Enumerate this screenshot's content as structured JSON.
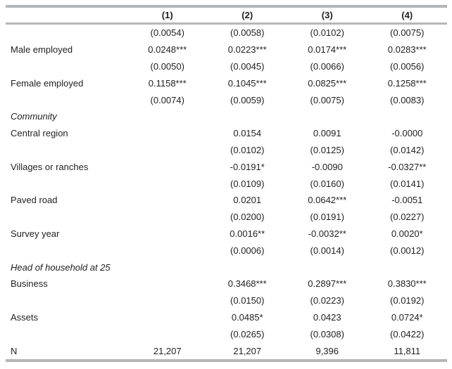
{
  "table": {
    "colors": {
      "rule": "#b4b6b8",
      "text": "#1f1f1f"
    },
    "header": {
      "label": "",
      "columns": [
        "(1)",
        "(2)",
        "(3)",
        "(4)"
      ]
    },
    "rows": [
      {
        "label": "",
        "italic": false,
        "values": [
          "(0.0054)",
          "(0.0058)",
          "(0.0102)",
          "(0.0075)"
        ]
      },
      {
        "label": "Male employed",
        "italic": false,
        "values": [
          "0.0248***",
          "0.0223***",
          "0.0174***",
          "0.0283***"
        ]
      },
      {
        "label": "",
        "italic": false,
        "values": [
          "(0.0050)",
          "(0.0045)",
          "(0.0066)",
          "(0.0056)"
        ]
      },
      {
        "label": "Female employed",
        "italic": false,
        "values": [
          "0.1158***",
          "0.1045***",
          "0.0825***",
          "0.1258***"
        ]
      },
      {
        "label": "",
        "italic": false,
        "values": [
          "(0.0074)",
          "(0.0059)",
          "(0.0075)",
          "(0.0083)"
        ]
      },
      {
        "label": "Community",
        "italic": true,
        "values": [
          "",
          "",
          "",
          ""
        ]
      },
      {
        "label": "Central region",
        "italic": false,
        "values": [
          "",
          "0.0154",
          "0.0091",
          "-0.0000"
        ]
      },
      {
        "label": "",
        "italic": false,
        "values": [
          "",
          "(0.0102)",
          "(0.0125)",
          "(0.0142)"
        ]
      },
      {
        "label": "Villages or ranches",
        "italic": false,
        "values": [
          "",
          "-0.0191*",
          "-0.0090",
          "-0.0327**"
        ]
      },
      {
        "label": "",
        "italic": false,
        "values": [
          "",
          "(0.0109)",
          "(0.0160)",
          "(0.0141)"
        ]
      },
      {
        "label": "Paved road",
        "italic": false,
        "values": [
          "",
          "0.0201",
          "0.0642***",
          "-0.0051"
        ]
      },
      {
        "label": "",
        "italic": false,
        "values": [
          "",
          "(0.0200)",
          "(0.0191)",
          "(0.0227)"
        ]
      },
      {
        "label": "Survey year",
        "italic": false,
        "values": [
          "",
          "0.0016**",
          "-0.0032**",
          "0.0020*"
        ]
      },
      {
        "label": "",
        "italic": false,
        "values": [
          "",
          "(0.0006)",
          "(0.0014)",
          "(0.0012)"
        ]
      },
      {
        "label": "Head of household at 25",
        "italic": true,
        "values": [
          "",
          "",
          "",
          ""
        ]
      },
      {
        "label": "Business",
        "italic": false,
        "values": [
          "",
          "0.3468***",
          "0.2897***",
          "0.3830***"
        ]
      },
      {
        "label": "",
        "italic": false,
        "values": [
          "",
          "(0.0150)",
          "(0.0223)",
          "(0.0192)"
        ]
      },
      {
        "label": "Assets",
        "italic": false,
        "values": [
          "",
          "0.0485*",
          "0.0423",
          "0.0724*"
        ]
      },
      {
        "label": "",
        "italic": false,
        "values": [
          "",
          "(0.0265)",
          "(0.0308)",
          "(0.0422)"
        ]
      },
      {
        "label": "N",
        "italic": false,
        "values": [
          "21,207",
          "21,207",
          "9,396",
          "11,811"
        ]
      }
    ]
  }
}
